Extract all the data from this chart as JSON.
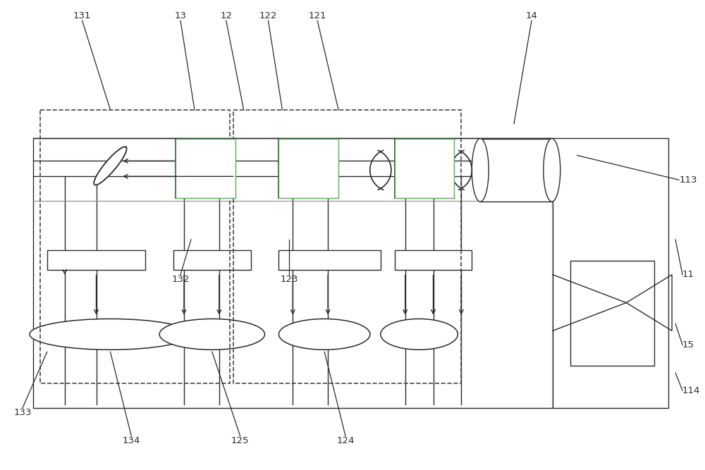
{
  "bg_color": "#ffffff",
  "line_color": "#2a2a2a",
  "dashed_color": "#444444",
  "green_color": "#5aaa5a",
  "label_color": "#111111",
  "fig_width": 10.0,
  "fig_height": 6.67,
  "lw_main": 1.3,
  "lw_thin": 1.0,
  "lw_dash": 1.2,
  "fontsize": 9.5
}
